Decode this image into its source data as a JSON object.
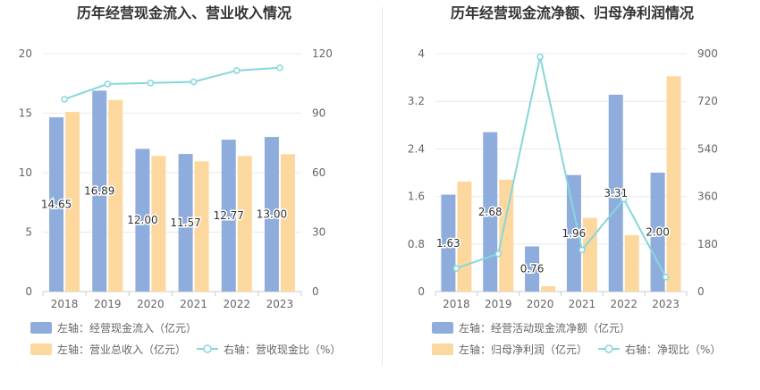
{
  "chart_data": [
    {
      "type": "bar",
      "title": "历年经营现金流入、营业收入情况",
      "categories": [
        "2018",
        "2019",
        "2020",
        "2021",
        "2022",
        "2023"
      ],
      "left_axis": {
        "ticks": [
          "0",
          "5",
          "10",
          "15",
          "20"
        ],
        "ylim": [
          0,
          20
        ]
      },
      "right_axis": {
        "ticks": [
          "0",
          "30",
          "60",
          "90",
          "120"
        ],
        "ylim": [
          0,
          120
        ]
      },
      "series": [
        {
          "name": "左轴：经营现金流入（亿元）",
          "type": "bar",
          "axis": "left",
          "color": "#8eaddd",
          "values": [
            14.65,
            16.89,
            12.0,
            11.57,
            12.77,
            13.0
          ],
          "labels": [
            "14.65",
            "16.89",
            "12.00",
            "11.57",
            "12.77",
            "13.00"
          ]
        },
        {
          "name": "左轴：营业总收入（亿元）",
          "type": "bar",
          "axis": "left",
          "color": "#fdd89e",
          "values": [
            15.1,
            16.1,
            11.4,
            10.95,
            11.4,
            11.55
          ]
        },
        {
          "name": "右轴：营收现金比（%）",
          "type": "line",
          "axis": "right",
          "color": "#86d7da",
          "values": [
            97,
            104.7,
            105.2,
            105.8,
            111.5,
            112.9
          ]
        }
      ],
      "legend_position": "bottom-left",
      "grid": true
    },
    {
      "type": "bar",
      "title": "历年经营现金流净额、归母净利润情况",
      "categories": [
        "2018",
        "2019",
        "2020",
        "2021",
        "2022",
        "2023"
      ],
      "left_axis": {
        "ticks": [
          "0",
          "0.8",
          "1.6",
          "2.4",
          "3.2",
          "4"
        ],
        "ylim": [
          0,
          4
        ]
      },
      "right_axis": {
        "ticks": [
          "0",
          "180",
          "360",
          "540",
          "720",
          "900"
        ],
        "ylim": [
          0,
          900
        ]
      },
      "series": [
        {
          "name": "左轴：经营活动现金流净额（亿元）",
          "type": "bar",
          "axis": "left",
          "color": "#8eaddd",
          "values": [
            1.63,
            2.68,
            0.76,
            1.96,
            3.31,
            2.0
          ],
          "labels": [
            "1.63",
            "2.68",
            "0.76",
            "1.96",
            "3.31",
            "2.00"
          ]
        },
        {
          "name": "左轴：归母净利润（亿元）",
          "type": "bar",
          "axis": "left",
          "color": "#fdd89e",
          "values": [
            1.85,
            1.88,
            0.09,
            1.24,
            0.95,
            3.62
          ]
        },
        {
          "name": "右轴：净现比（%）",
          "type": "line",
          "axis": "right",
          "color": "#86d7da",
          "values": [
            88,
            143,
            888,
            158,
            350,
            55
          ]
        }
      ],
      "legend_position": "bottom-left",
      "grid": true
    }
  ]
}
